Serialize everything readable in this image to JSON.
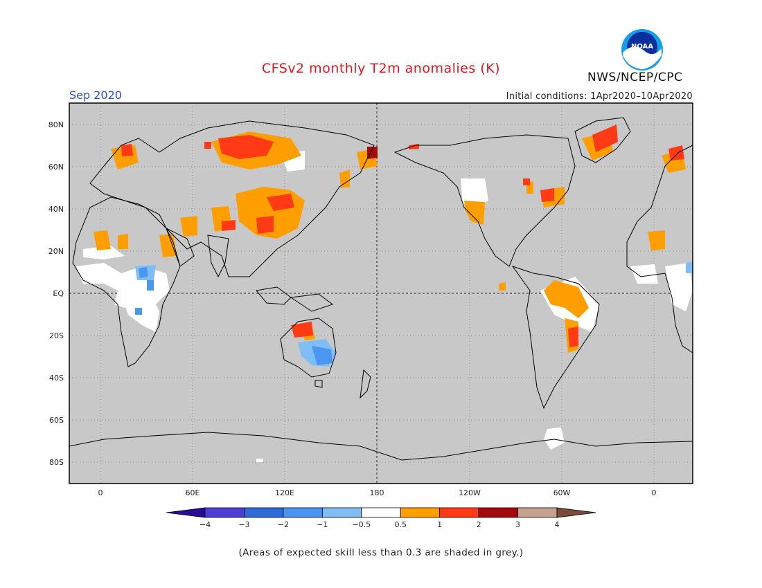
{
  "header": {
    "title": "CFSv2 monthly T2m anomalies (K)",
    "month": "Sep 2020",
    "initial_conditions": "Initial conditions: 1Apr2020–10Apr2020",
    "agency": "NWS/NCEP/CPC",
    "logo_text": "NOAA"
  },
  "axes": {
    "lat_labels": [
      "80N",
      "60N",
      "40N",
      "20N",
      "EQ",
      "20S",
      "40S",
      "60S",
      "80S"
    ],
    "lon_labels": [
      "0",
      "60E",
      "120E",
      "180",
      "120W",
      "60W",
      "0"
    ]
  },
  "colorbar": {
    "labels": [
      "−4",
      "−3",
      "−2",
      "−1",
      "−0.5",
      "0.5",
      "1",
      "2",
      "3",
      "4"
    ],
    "colors": [
      "#2b0a99",
      "#4c3fd1",
      "#2f6bd6",
      "#4a96f0",
      "#80bdf5",
      "#ffffff",
      "#ff9e00",
      "#ff3a14",
      "#a50a0a",
      "#c8a090",
      "#7a4a3a"
    ]
  },
  "map_colors": {
    "skill_grey": "#c8c8c8",
    "land_outline": "#000000",
    "grid": "#777777"
  },
  "footnote": "(Areas of expected skill less than 0.3 are shaded in grey.)"
}
